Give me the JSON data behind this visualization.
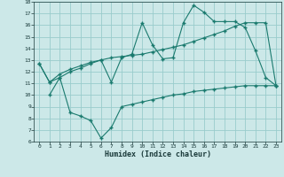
{
  "xlabel": "Humidex (Indice chaleur)",
  "bg_color": "#cce8e8",
  "grid_color": "#99cccc",
  "line_color": "#1a7a6e",
  "xlim": [
    -0.5,
    23.5
  ],
  "ylim": [
    6,
    18
  ],
  "xticks": [
    0,
    1,
    2,
    3,
    4,
    5,
    6,
    7,
    8,
    9,
    10,
    11,
    12,
    13,
    14,
    15,
    16,
    17,
    18,
    19,
    20,
    21,
    22,
    23
  ],
  "yticks": [
    6,
    7,
    8,
    9,
    10,
    11,
    12,
    13,
    14,
    15,
    16,
    17,
    18
  ],
  "line1_x": [
    0,
    1,
    2,
    3,
    4,
    5,
    6,
    7,
    8,
    9,
    10,
    11,
    12,
    13,
    14,
    15,
    16,
    17,
    18,
    19,
    20,
    21,
    22,
    23
  ],
  "line1_y": [
    12.7,
    11.1,
    11.5,
    12.0,
    12.3,
    12.7,
    13.0,
    11.1,
    13.2,
    13.5,
    16.2,
    14.3,
    13.1,
    13.2,
    16.2,
    17.7,
    17.1,
    16.3,
    16.3,
    16.3,
    15.8,
    13.8,
    11.5,
    10.8
  ],
  "line2_x": [
    0,
    1,
    2,
    3,
    4,
    5,
    6,
    7,
    8,
    9,
    10,
    11,
    12,
    13,
    14,
    15,
    16,
    17,
    18,
    19,
    20,
    21,
    22,
    23
  ],
  "line2_y": [
    12.7,
    11.1,
    11.8,
    12.2,
    12.5,
    12.8,
    13.0,
    13.2,
    13.3,
    13.4,
    13.5,
    13.7,
    13.9,
    14.1,
    14.3,
    14.6,
    14.9,
    15.2,
    15.5,
    15.9,
    16.2,
    16.2,
    16.2,
    10.8
  ],
  "line3_x": [
    1,
    2,
    3,
    4,
    5,
    6,
    7,
    8,
    9,
    10,
    11,
    12,
    13,
    14,
    15,
    16,
    17,
    18,
    19,
    20,
    21,
    22,
    23
  ],
  "line3_y": [
    10.0,
    11.5,
    8.5,
    8.2,
    7.8,
    6.3,
    7.2,
    9.0,
    9.2,
    9.4,
    9.6,
    9.8,
    10.0,
    10.1,
    10.3,
    10.4,
    10.5,
    10.6,
    10.7,
    10.8,
    10.8,
    10.8,
    10.8
  ]
}
